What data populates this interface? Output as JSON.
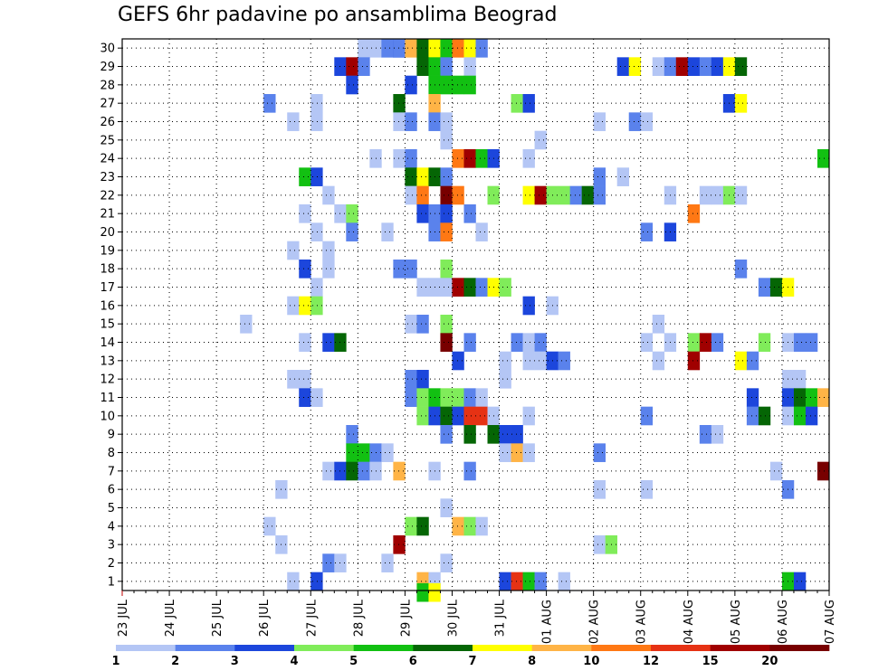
{
  "chart_data": {
    "type": "heatmap",
    "title": "GEFS 6hr padavine po ansamblima Beograd",
    "xlabel": "",
    "ylabel": "",
    "x_tick_labels": [
      "23 JUL",
      "24 JUL",
      "25 JUL",
      "26 JUL",
      "27 JUL",
      "28 JUL",
      "29 JUL",
      "30 JUL",
      "31 JUL",
      "01 AUG",
      "02 AUG",
      "03 AUG",
      "04 AUG",
      "05 AUG",
      "06 AUG",
      "07 AUG"
    ],
    "y_tick_labels": [
      "1",
      "2",
      "3",
      "4",
      "5",
      "6",
      "7",
      "8",
      "9",
      "10",
      "11",
      "12",
      "13",
      "14",
      "15",
      "16",
      "17",
      "18",
      "19",
      "20",
      "21",
      "22",
      "23",
      "24",
      "25",
      "26",
      "27",
      "28",
      "29",
      "30"
    ],
    "x_range_days": [
      0,
      15
    ],
    "y_range": [
      0.5,
      30.5
    ],
    "cell_days": 0.25,
    "grid": true,
    "colorbar": {
      "labels": [
        "1",
        "2",
        "3",
        "4",
        "5",
        "6",
        "7",
        "8",
        "10",
        "12",
        "15",
        "20"
      ],
      "colors": [
        "#b4c6f5",
        "#5a82ec",
        "#1c46dc",
        "#80ec5a",
        "#12c012",
        "#056605",
        "#ffff00",
        "#ffb446",
        "#ff7814",
        "#e63214",
        "#a00000",
        "#780000"
      ]
    },
    "cells": [
      [
        30,
        0,
        5.0
      ],
      [
        30,
        0,
        5.25
      ],
      [
        30,
        1,
        5.5
      ],
      [
        30,
        2,
        5.75
      ],
      [
        30,
        1,
        5.75
      ],
      [
        30,
        7,
        6.0
      ],
      [
        30,
        5,
        6.25
      ],
      [
        30,
        6,
        6.5
      ],
      [
        30,
        4,
        6.75
      ],
      [
        30,
        8,
        7.0
      ],
      [
        30,
        6,
        7.25
      ],
      [
        30,
        1,
        7.5
      ],
      [
        29,
        2,
        4.5
      ],
      [
        29,
        10,
        4.75
      ],
      [
        29,
        1,
        5.0
      ],
      [
        29,
        5,
        6.25
      ],
      [
        29,
        4,
        6.5
      ],
      [
        29,
        1,
        6.75
      ],
      [
        29,
        0,
        7.25
      ],
      [
        29,
        2,
        10.5
      ],
      [
        29,
        6,
        10.75
      ],
      [
        29,
        0,
        11.25
      ],
      [
        29,
        1,
        11.5
      ],
      [
        29,
        10,
        11.75
      ],
      [
        29,
        2,
        12.0
      ],
      [
        29,
        1,
        12.25
      ],
      [
        29,
        2,
        12.5
      ],
      [
        29,
        6,
        12.75
      ],
      [
        29,
        5,
        13.0
      ],
      [
        28,
        2,
        4.75
      ],
      [
        28,
        2,
        6.0
      ],
      [
        28,
        4,
        6.5
      ],
      [
        28,
        4,
        6.75
      ],
      [
        28,
        4,
        7.0
      ],
      [
        28,
        4,
        7.25
      ],
      [
        27,
        1,
        3.0
      ],
      [
        27,
        0,
        4.0
      ],
      [
        27,
        5,
        5.75
      ],
      [
        27,
        7,
        6.5
      ],
      [
        27,
        3,
        8.25
      ],
      [
        27,
        2,
        8.5
      ],
      [
        27,
        2,
        12.75
      ],
      [
        27,
        6,
        13.0
      ],
      [
        26,
        0,
        3.5
      ],
      [
        26,
        0,
        4.0
      ],
      [
        26,
        0,
        5.75
      ],
      [
        26,
        1,
        6.0
      ],
      [
        26,
        1,
        6.5
      ],
      [
        26,
        0,
        6.75
      ],
      [
        26,
        0,
        10.0
      ],
      [
        26,
        1,
        10.75
      ],
      [
        26,
        0,
        11.0
      ],
      [
        25,
        0,
        6.75
      ],
      [
        25,
        0,
        8.75
      ],
      [
        24,
        0,
        5.25
      ],
      [
        24,
        0,
        5.75
      ],
      [
        24,
        1,
        6.0
      ],
      [
        24,
        8,
        7.0
      ],
      [
        24,
        10,
        7.25
      ],
      [
        24,
        4,
        7.5
      ],
      [
        24,
        2,
        7.75
      ],
      [
        24,
        0,
        8.5
      ],
      [
        24,
        4,
        14.75
      ],
      [
        23,
        4,
        3.75
      ],
      [
        23,
        2,
        4.0
      ],
      [
        23,
        5,
        6.0
      ],
      [
        23,
        6,
        6.25
      ],
      [
        23,
        5,
        6.5
      ],
      [
        23,
        1,
        6.75
      ],
      [
        23,
        1,
        10.0
      ],
      [
        23,
        0,
        10.5
      ],
      [
        22,
        0,
        4.25
      ],
      [
        22,
        0,
        6.0
      ],
      [
        22,
        8,
        6.25
      ],
      [
        22,
        11,
        6.75
      ],
      [
        22,
        8,
        7.0
      ],
      [
        22,
        3,
        7.75
      ],
      [
        22,
        6,
        8.5
      ],
      [
        22,
        10,
        8.75
      ],
      [
        22,
        3,
        9.0
      ],
      [
        22,
        3,
        9.25
      ],
      [
        22,
        1,
        9.5
      ],
      [
        22,
        5,
        9.75
      ],
      [
        22,
        1,
        10.0
      ],
      [
        22,
        0,
        11.5
      ],
      [
        22,
        0,
        12.25
      ],
      [
        22,
        0,
        12.5
      ],
      [
        22,
        3,
        12.75
      ],
      [
        22,
        0,
        13.0
      ],
      [
        21,
        0,
        3.75
      ],
      [
        21,
        0,
        4.5
      ],
      [
        21,
        3,
        4.75
      ],
      [
        21,
        2,
        6.25
      ],
      [
        21,
        1,
        6.5
      ],
      [
        21,
        2,
        6.75
      ],
      [
        21,
        1,
        7.25
      ],
      [
        21,
        8,
        12.0
      ],
      [
        20,
        0,
        4.0
      ],
      [
        20,
        1,
        4.75
      ],
      [
        20,
        0,
        5.5
      ],
      [
        20,
        1,
        6.5
      ],
      [
        20,
        8,
        6.75
      ],
      [
        20,
        0,
        7.5
      ],
      [
        20,
        1,
        11.0
      ],
      [
        20,
        2,
        11.5
      ],
      [
        19,
        0,
        3.5
      ],
      [
        19,
        0,
        4.25
      ],
      [
        18,
        2,
        3.75
      ],
      [
        18,
        0,
        4.25
      ],
      [
        18,
        1,
        5.75
      ],
      [
        18,
        1,
        6.0
      ],
      [
        18,
        3,
        6.75
      ],
      [
        18,
        1,
        13.0
      ],
      [
        17,
        0,
        4.0
      ],
      [
        17,
        0,
        6.25
      ],
      [
        17,
        0,
        6.5
      ],
      [
        17,
        0,
        6.75
      ],
      [
        17,
        10,
        7.0
      ],
      [
        17,
        5,
        7.25
      ],
      [
        17,
        1,
        7.5
      ],
      [
        17,
        6,
        7.75
      ],
      [
        17,
        3,
        8.0
      ],
      [
        17,
        1,
        13.5
      ],
      [
        17,
        5,
        13.75
      ],
      [
        17,
        6,
        14.0
      ],
      [
        16,
        0,
        3.5
      ],
      [
        16,
        6,
        3.75
      ],
      [
        16,
        3,
        4.0
      ],
      [
        16,
        2,
        8.5
      ],
      [
        16,
        0,
        9.0
      ],
      [
        15,
        0,
        2.5
      ],
      [
        15,
        0,
        6.0
      ],
      [
        15,
        1,
        6.25
      ],
      [
        15,
        3,
        6.75
      ],
      [
        15,
        0,
        11.25
      ],
      [
        14,
        0,
        3.75
      ],
      [
        14,
        2,
        4.25
      ],
      [
        14,
        5,
        4.5
      ],
      [
        14,
        11,
        6.75
      ],
      [
        14,
        1,
        7.25
      ],
      [
        14,
        1,
        8.25
      ],
      [
        14,
        0,
        8.5
      ],
      [
        14,
        1,
        8.75
      ],
      [
        14,
        0,
        11.0
      ],
      [
        14,
        0,
        11.5
      ],
      [
        14,
        3,
        12.0
      ],
      [
        14,
        10,
        12.25
      ],
      [
        14,
        1,
        12.5
      ],
      [
        14,
        3,
        13.5
      ],
      [
        14,
        0,
        14.0
      ],
      [
        14,
        1,
        14.25
      ],
      [
        14,
        1,
        14.5
      ],
      [
        13,
        2,
        7.0
      ],
      [
        13,
        0,
        8.0
      ],
      [
        13,
        0,
        8.5
      ],
      [
        13,
        0,
        8.75
      ],
      [
        13,
        2,
        9.0
      ],
      [
        13,
        1,
        9.25
      ],
      [
        13,
        0,
        11.25
      ],
      [
        13,
        10,
        12.0
      ],
      [
        13,
        6,
        13.0
      ],
      [
        13,
        1,
        13.25
      ],
      [
        12,
        0,
        3.5
      ],
      [
        12,
        0,
        3.75
      ],
      [
        12,
        1,
        6.0
      ],
      [
        12,
        2,
        6.25
      ],
      [
        12,
        0,
        8.0
      ],
      [
        12,
        0,
        14.0
      ],
      [
        12,
        0,
        14.25
      ],
      [
        11,
        2,
        3.75
      ],
      [
        11,
        0,
        4.0
      ],
      [
        11,
        1,
        6.0
      ],
      [
        11,
        3,
        6.25
      ],
      [
        11,
        4,
        6.5
      ],
      [
        11,
        3,
        6.75
      ],
      [
        11,
        3,
        7.0
      ],
      [
        11,
        1,
        7.25
      ],
      [
        11,
        0,
        7.5
      ],
      [
        11,
        2,
        13.25
      ],
      [
        11,
        2,
        14.0
      ],
      [
        11,
        5,
        14.25
      ],
      [
        11,
        4,
        14.5
      ],
      [
        11,
        7,
        14.75
      ],
      [
        10,
        3,
        6.25
      ],
      [
        10,
        2,
        6.5
      ],
      [
        10,
        5,
        6.75
      ],
      [
        10,
        2,
        7.0
      ],
      [
        10,
        9,
        7.25
      ],
      [
        10,
        9,
        7.5
      ],
      [
        10,
        0,
        7.75
      ],
      [
        10,
        0,
        8.5
      ],
      [
        10,
        1,
        11.0
      ],
      [
        10,
        1,
        13.25
      ],
      [
        10,
        5,
        13.5
      ],
      [
        10,
        0,
        14.0
      ],
      [
        10,
        4,
        14.25
      ],
      [
        10,
        2,
        14.5
      ],
      [
        9,
        1,
        4.75
      ],
      [
        9,
        1,
        6.75
      ],
      [
        9,
        5,
        7.25
      ],
      [
        9,
        5,
        7.75
      ],
      [
        9,
        2,
        8.0
      ],
      [
        9,
        2,
        8.25
      ],
      [
        9,
        1,
        12.25
      ],
      [
        9,
        0,
        12.5
      ],
      [
        8,
        4,
        4.75
      ],
      [
        8,
        4,
        5.0
      ],
      [
        8,
        1,
        5.25
      ],
      [
        8,
        0,
        5.5
      ],
      [
        8,
        0,
        8.0
      ],
      [
        8,
        7,
        8.25
      ],
      [
        8,
        0,
        8.5
      ],
      [
        8,
        1,
        10.0
      ],
      [
        7,
        0,
        4.25
      ],
      [
        7,
        2,
        4.5
      ],
      [
        7,
        5,
        4.75
      ],
      [
        7,
        1,
        5.0
      ],
      [
        7,
        0,
        5.25
      ],
      [
        7,
        7,
        5.75
      ],
      [
        7,
        0,
        6.5
      ],
      [
        7,
        1,
        7.25
      ],
      [
        7,
        0,
        13.75
      ],
      [
        7,
        11,
        14.75
      ],
      [
        6,
        0,
        3.25
      ],
      [
        6,
        0,
        10.0
      ],
      [
        6,
        0,
        11.0
      ],
      [
        6,
        1,
        14.0
      ],
      [
        5,
        0,
        6.75
      ],
      [
        4,
        0,
        3.0
      ],
      [
        4,
        3,
        6.0
      ],
      [
        4,
        5,
        6.25
      ],
      [
        4,
        7,
        7.0
      ],
      [
        4,
        3,
        7.25
      ],
      [
        4,
        0,
        7.5
      ],
      [
        3,
        0,
        3.25
      ],
      [
        3,
        10,
        5.75
      ],
      [
        3,
        0,
        10.0
      ],
      [
        3,
        3,
        10.25
      ],
      [
        2,
        1,
        4.25
      ],
      [
        2,
        0,
        4.5
      ],
      [
        2,
        0,
        5.5
      ],
      [
        2,
        0,
        6.75
      ],
      [
        1,
        0,
        3.5
      ],
      [
        1,
        2,
        4.0
      ],
      [
        1,
        7,
        6.25
      ],
      [
        1,
        0,
        6.5
      ],
      [
        1,
        2,
        8.0
      ],
      [
        1,
        9,
        8.25
      ],
      [
        1,
        4,
        8.5
      ],
      [
        1,
        1,
        8.75
      ],
      [
        1,
        0,
        9.25
      ],
      [
        1,
        4,
        14.0
      ],
      [
        1,
        2,
        14.25
      ],
      [
        0.4,
        4,
        6.25
      ],
      [
        0.4,
        6,
        6.5
      ]
    ]
  }
}
